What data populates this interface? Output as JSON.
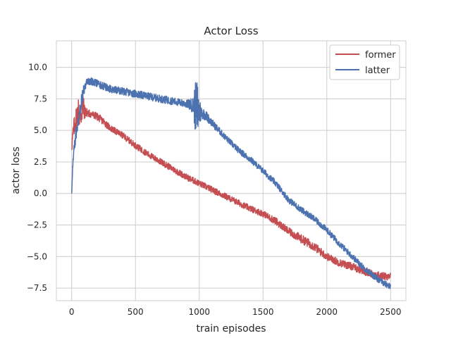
{
  "chart_data": {
    "type": "line",
    "title": "Actor Loss",
    "xlabel": "train episodes",
    "ylabel": "actor loss",
    "xlim": [
      -120,
      2620
    ],
    "ylim": [
      -8.5,
      12.1
    ],
    "xticks": [
      0,
      500,
      1000,
      1500,
      2000,
      2500
    ],
    "xtick_labels": [
      "0",
      "500",
      "1000",
      "1500",
      "2000",
      "2500"
    ],
    "yticks": [
      -7.5,
      -5.0,
      -2.5,
      0.0,
      2.5,
      5.0,
      7.5,
      10.0
    ],
    "ytick_labels": [
      "−7.5",
      "−5.0",
      "−2.5",
      "0.0",
      "2.5",
      "5.0",
      "7.5",
      "10.0"
    ],
    "grid": true,
    "legend_position": "top-right",
    "series": [
      {
        "name": "former",
        "color": "#c44e52",
        "x": [
          0,
          15,
          30,
          50,
          70,
          85,
          100,
          120,
          150,
          200,
          250,
          300,
          350,
          400,
          450,
          500,
          600,
          700,
          800,
          900,
          1000,
          1100,
          1200,
          1300,
          1400,
          1500,
          1600,
          1700,
          1800,
          1900,
          2000,
          2100,
          2200,
          2300,
          2400,
          2500
        ],
        "y": [
          3.8,
          5.0,
          5.8,
          6.5,
          6.2,
          7.0,
          6.5,
          6.4,
          6.3,
          6.1,
          5.7,
          5.2,
          4.9,
          4.6,
          4.2,
          3.8,
          3.1,
          2.5,
          1.9,
          1.3,
          0.8,
          0.3,
          -0.2,
          -0.7,
          -1.2,
          -1.6,
          -2.2,
          -3.0,
          -3.6,
          -4.2,
          -5.0,
          -5.5,
          -5.8,
          -6.2,
          -6.5,
          -6.6
        ],
        "noise": [
          0.6,
          0.8,
          0.9,
          1.2,
          1.5,
          1.4,
          0.6,
          0.35,
          0.3,
          0.3,
          0.3,
          0.25,
          0.25,
          0.25,
          0.25,
          0.25,
          0.25,
          0.25,
          0.25,
          0.25,
          0.25,
          0.25,
          0.25,
          0.25,
          0.25,
          0.25,
          0.3,
          0.3,
          0.35,
          0.35,
          0.3,
          0.3,
          0.3,
          0.3,
          0.3,
          0.3
        ]
      },
      {
        "name": "latter",
        "color": "#4c72b0",
        "x": [
          0,
          10,
          30,
          60,
          90,
          120,
          150,
          200,
          250,
          300,
          400,
          500,
          600,
          700,
          800,
          900,
          950,
          970,
          985,
          1000,
          1020,
          1050,
          1100,
          1200,
          1300,
          1400,
          1500,
          1600,
          1700,
          1800,
          1900,
          2000,
          2100,
          2200,
          2300,
          2400,
          2500
        ],
        "y": [
          0.0,
          2.5,
          4.5,
          6.5,
          8.0,
          8.9,
          8.9,
          8.7,
          8.5,
          8.3,
          8.1,
          7.9,
          7.7,
          7.5,
          7.3,
          7.1,
          7.0,
          6.8,
          6.7,
          6.5,
          6.4,
          6.2,
          5.6,
          4.5,
          3.5,
          2.7,
          1.8,
          0.8,
          -0.5,
          -1.3,
          -2.0,
          -2.9,
          -4.0,
          -5.0,
          -6.0,
          -6.8,
          -7.4
        ],
        "noise": [
          0.0,
          0.5,
          0.6,
          0.7,
          0.5,
          0.3,
          0.3,
          0.3,
          0.3,
          0.3,
          0.3,
          0.3,
          0.3,
          0.3,
          0.3,
          0.3,
          0.6,
          2.0,
          2.5,
          1.2,
          0.5,
          0.4,
          0.3,
          0.25,
          0.25,
          0.25,
          0.25,
          0.25,
          0.25,
          0.25,
          0.25,
          0.25,
          0.25,
          0.25,
          0.25,
          0.25,
          0.25
        ]
      }
    ]
  }
}
